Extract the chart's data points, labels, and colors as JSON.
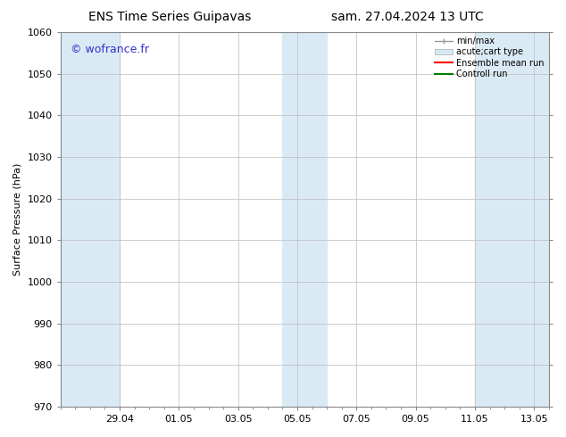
{
  "title_left": "ENS Time Series Guipavas",
  "title_right": "sam. 27.04.2024 13 UTC",
  "ylabel": "Surface Pressure (hPa)",
  "ylim": [
    970,
    1060
  ],
  "yticks": [
    970,
    980,
    990,
    1000,
    1010,
    1020,
    1030,
    1040,
    1050,
    1060
  ],
  "xlim": [
    0,
    16.5
  ],
  "xtick_positions": [
    2,
    4,
    6,
    8,
    10,
    12,
    14,
    16
  ],
  "xtick_labels": [
    "29.04",
    "01.05",
    "03.05",
    "05.05",
    "07.05",
    "09.05",
    "11.05",
    "13.05"
  ],
  "shaded_bands": [
    {
      "x_start": 0.0,
      "x_end": 2.0
    },
    {
      "x_start": 7.5,
      "x_end": 9.0
    },
    {
      "x_start": 14.0,
      "x_end": 16.5
    }
  ],
  "shade_color": "#daeaf5",
  "watermark_text": "© wofrance.fr",
  "watermark_color": "#3333cc",
  "legend_entries": [
    {
      "label": "min/max",
      "type": "errorbar",
      "color": "#aaaaaa"
    },
    {
      "label": "acute;cart type",
      "type": "box",
      "color": "#cce0f0"
    },
    {
      "label": "Ensemble mean run",
      "type": "line",
      "color": "red"
    },
    {
      "label": "Controll run",
      "type": "line",
      "color": "green"
    }
  ],
  "background_color": "#ffffff",
  "grid_color": "#bbbbbb",
  "spine_color": "#888888",
  "title_fontsize": 10,
  "axis_label_fontsize": 8,
  "tick_fontsize": 8,
  "watermark_fontsize": 9,
  "legend_fontsize": 7
}
